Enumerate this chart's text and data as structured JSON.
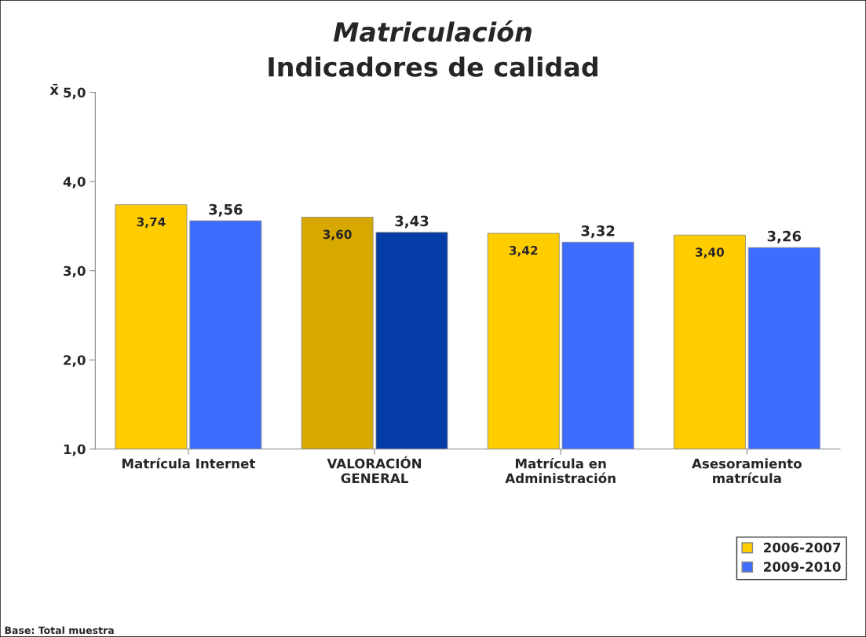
{
  "chart_data": {
    "type": "bar",
    "title": "Matriculación",
    "subtitle": "Indicadores de calidad",
    "ylabel": "x̄",
    "categories": [
      "Matrícula Internet",
      "VALORACIÓN\nGENERAL",
      "Matrícula en\nAdministración",
      "Asesoramiento\nmatrícula"
    ],
    "series": [
      {
        "name": "2006-2007",
        "color": "#ffcc00",
        "colors": [
          "#ffcc00",
          "#d6a800",
          "#ffcc00",
          "#ffcc00"
        ],
        "values": [
          3.74,
          3.6,
          3.42,
          3.4
        ],
        "value_labels": [
          "3,74",
          "3,60",
          "3,42",
          "3,40"
        ]
      },
      {
        "name": "2009-2010",
        "color": "#3d6dff",
        "colors": [
          "#3d6dff",
          "#063ca8",
          "#3d6dff",
          "#3d6dff"
        ],
        "values": [
          3.56,
          3.43,
          3.32,
          3.26
        ],
        "value_labels": [
          "3,56",
          "3,43",
          "3,32",
          "3,26"
        ]
      }
    ],
    "ylim": [
      1,
      5
    ],
    "yticks": [
      {
        "value": 1,
        "label": "1,0"
      },
      {
        "value": 2,
        "label": "2,0"
      },
      {
        "value": 3,
        "label": "3,0"
      },
      {
        "value": 4,
        "label": "4,0"
      },
      {
        "value": 5,
        "label": "5,0"
      }
    ],
    "grid": false,
    "legend": "bottom right",
    "annotations": [
      "Base: Total muestra"
    ]
  }
}
